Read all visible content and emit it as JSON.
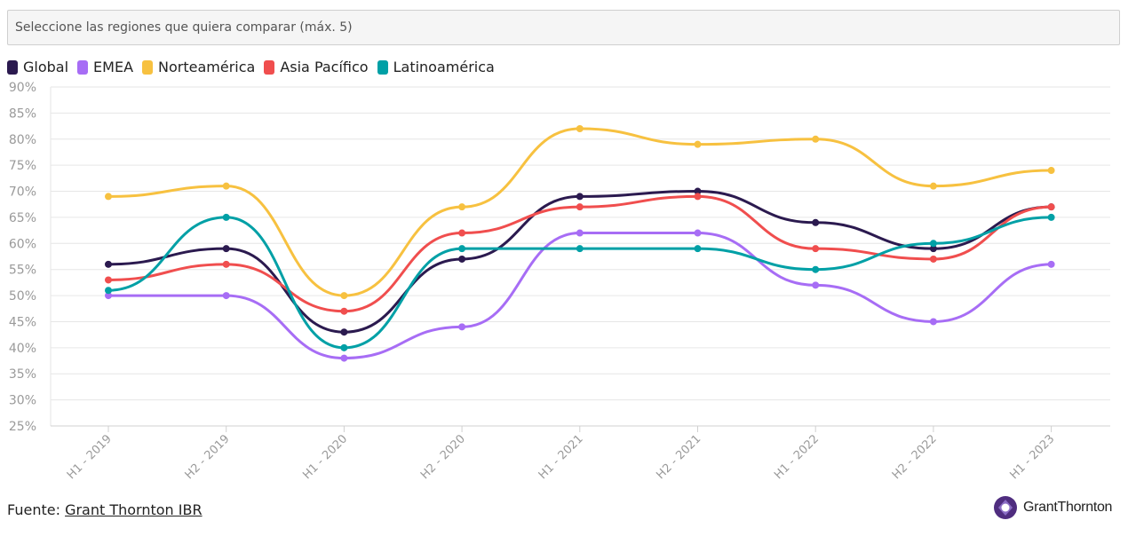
{
  "selector": {
    "placeholder": "Seleccione las regiones que quiera comparar (máx. 5)"
  },
  "footer": {
    "source_label": "Fuente:",
    "source_link": "Grant Thornton IBR"
  },
  "logo": {
    "text": "GrantThornton",
    "icon": "grant-thornton-logo-icon",
    "color": "#4f2d7f"
  },
  "chart_data": {
    "type": "line",
    "smooth": true,
    "categories": [
      "H1 - 2019",
      "H2 - 2019",
      "H1 - 2020",
      "H2 - 2020",
      "H1 - 2021",
      "H2 - 2021",
      "H1 - 2022",
      "H2 - 2022",
      "H1 - 2023"
    ],
    "ylim": [
      25,
      90
    ],
    "yticks": [
      "25%",
      "30%",
      "35%",
      "40%",
      "45%",
      "50%",
      "55%",
      "60%",
      "65%",
      "70%",
      "75%",
      "80%",
      "85%",
      "90%"
    ],
    "grid": true,
    "legend": "top-left",
    "series": [
      {
        "name": "Global",
        "color": "#2b1a4f",
        "values": [
          56,
          59,
          43,
          57,
          69,
          70,
          64,
          59,
          67
        ]
      },
      {
        "name": "EMEA",
        "color": "#a76df5",
        "values": [
          50,
          50,
          38,
          44,
          62,
          62,
          52,
          45,
          56
        ]
      },
      {
        "name": "Norteamérica",
        "color": "#f7c140",
        "values": [
          69,
          71,
          50,
          67,
          82,
          79,
          80,
          71,
          74
        ]
      },
      {
        "name": "Asia Pacífico",
        "color": "#f04e4e",
        "values": [
          53,
          56,
          47,
          62,
          67,
          69,
          59,
          57,
          67
        ]
      },
      {
        "name": "Latinoamérica",
        "color": "#00a0a6",
        "values": [
          51,
          65,
          40,
          59,
          59,
          59,
          55,
          60,
          65
        ]
      }
    ]
  }
}
